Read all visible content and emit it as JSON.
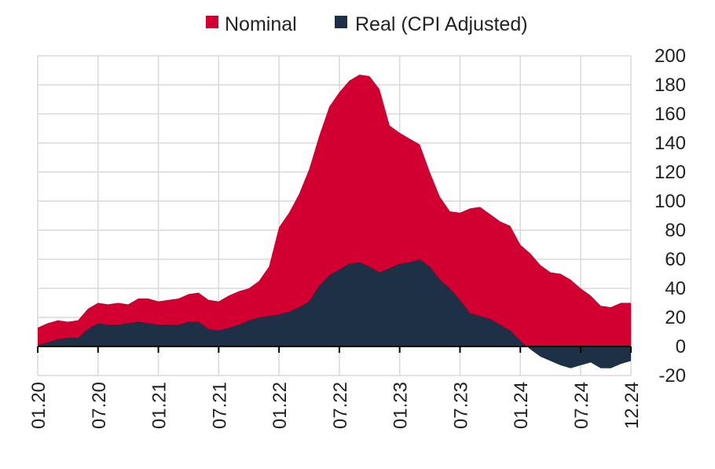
{
  "chart_data": {
    "type": "area",
    "title": "",
    "xlabel": "",
    "ylabel": "",
    "x": [
      "01.20",
      "02.20",
      "03.20",
      "04.20",
      "05.20",
      "06.20",
      "07.20",
      "08.20",
      "09.20",
      "10.20",
      "11.20",
      "12.20",
      "01.21",
      "02.21",
      "03.21",
      "04.21",
      "05.21",
      "06.21",
      "07.21",
      "08.21",
      "09.21",
      "10.21",
      "11.21",
      "12.21",
      "01.22",
      "02.22",
      "03.22",
      "04.22",
      "05.22",
      "06.22",
      "07.22",
      "08.22",
      "09.22",
      "10.22",
      "11.22",
      "12.22",
      "01.23",
      "02.23",
      "03.23",
      "04.23",
      "05.23",
      "06.23",
      "07.23",
      "08.23",
      "09.23",
      "10.23",
      "11.23",
      "12.23",
      "01.24",
      "02.24",
      "03.24",
      "04.24",
      "05.24",
      "06.24",
      "07.24",
      "08.24",
      "09.24",
      "10.24",
      "11.24",
      "12.24"
    ],
    "x_tick_labels": [
      "01.20",
      "07.20",
      "01.21",
      "07.21",
      "01.22",
      "07.22",
      "01.23",
      "07.23",
      "01.24",
      "07.24",
      "12.24"
    ],
    "x_tick_index": [
      0,
      6,
      12,
      18,
      24,
      30,
      36,
      42,
      48,
      54,
      59
    ],
    "series": [
      {
        "name": "Nominal",
        "color": "#d10031",
        "values": [
          13,
          16,
          18,
          17,
          18,
          26,
          30,
          29,
          30,
          29,
          33,
          33,
          31,
          32,
          33,
          36,
          37,
          32,
          31,
          35,
          38,
          40,
          45,
          55,
          82,
          92,
          105,
          122,
          145,
          165,
          175,
          183,
          187,
          186,
          177,
          152,
          147,
          143,
          139,
          120,
          103,
          93,
          92,
          95,
          96,
          91,
          86,
          83,
          70,
          64,
          56,
          51,
          50,
          46,
          40,
          35,
          28,
          27,
          30,
          30
        ]
      },
      {
        "name": "Real (CPI Adjusted)",
        "color": "#1e3045",
        "values": [
          1,
          3,
          5,
          6,
          6,
          12,
          16,
          15,
          15,
          16,
          17,
          16,
          15,
          15,
          15,
          17,
          17,
          12,
          11,
          13,
          15,
          18,
          20,
          21,
          22,
          24,
          27,
          31,
          42,
          49,
          53,
          57,
          58,
          55,
          51,
          54,
          57,
          58,
          60,
          55,
          46,
          40,
          32,
          23,
          21,
          19,
          15,
          11,
          4,
          -2,
          -7,
          -10,
          -13,
          -15,
          -13,
          -11,
          -15,
          -15,
          -12,
          -10
        ]
      }
    ],
    "y_ticks": [
      200,
      180,
      160,
      140,
      120,
      100,
      80,
      60,
      40,
      20,
      0,
      -20
    ],
    "ylim": [
      -20,
      200
    ],
    "y_axis_position": "right",
    "grid": true,
    "legend_position": "top-center"
  }
}
